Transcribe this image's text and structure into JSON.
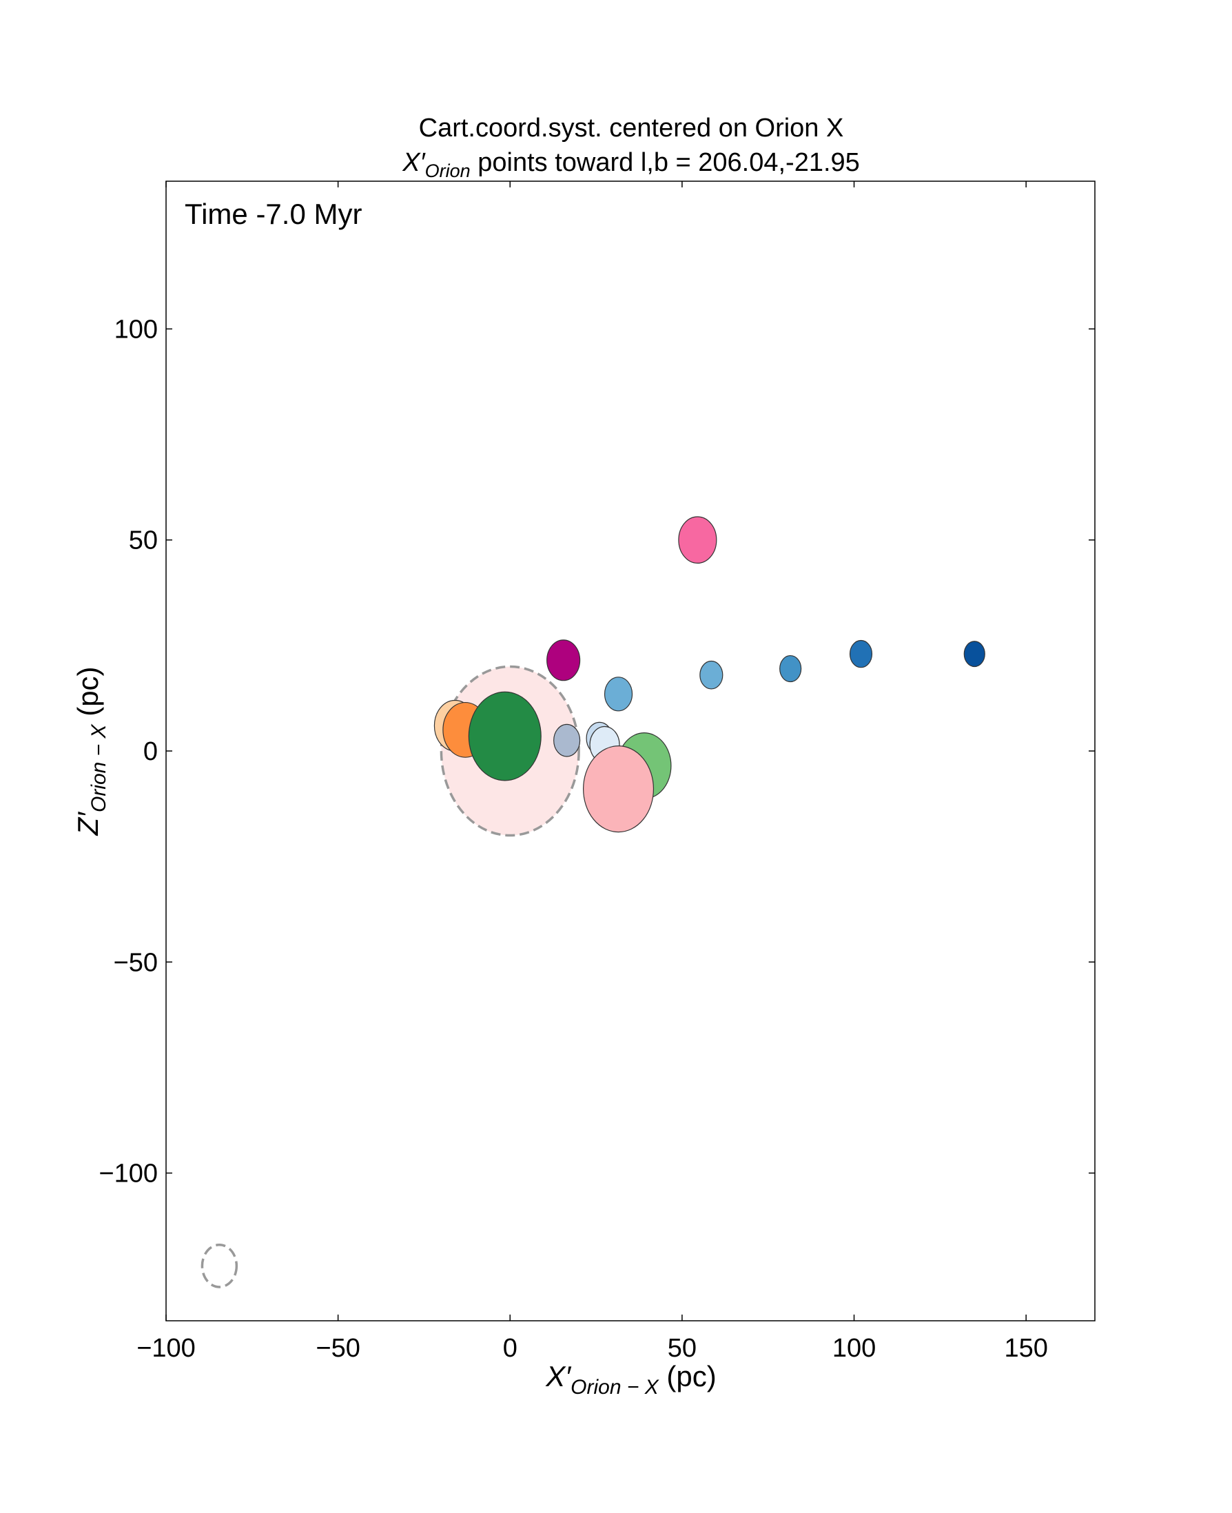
{
  "chart_data": {
    "type": "scatter",
    "title_line1": "Cart.coord.syst. centered on Orion X",
    "title_line2": {
      "symbol": "X′",
      "subscript": "Orion",
      "rest": " points toward l,b = 206.04,-21.95"
    },
    "xlabel": {
      "symbol": "X′",
      "subscript": "Orion − X",
      "unit": " (pc)"
    },
    "ylabel": {
      "symbol": "Z′",
      "subscript": "Orion − X",
      "unit": " (pc)"
    },
    "annotation": "Time  -7.0 Myr",
    "xlim": [
      -100,
      170
    ],
    "ylim": [
      -135,
      135
    ],
    "xticks": [
      -100,
      -50,
      0,
      50,
      100,
      150
    ],
    "xtick_labels": [
      "−100",
      "−50",
      "0",
      "50",
      "100",
      "150"
    ],
    "yticks": [
      -100,
      -50,
      0,
      50,
      100
    ],
    "ytick_labels": [
      "−100",
      "−50",
      "0",
      "50",
      "100"
    ],
    "grid": false,
    "points": [
      {
        "x": 0,
        "y": 0,
        "r": 20,
        "color": "#fde6e6",
        "dashed": true
      },
      {
        "x": -16,
        "y": 6,
        "r": 6,
        "color": "#fdd0a2"
      },
      {
        "x": -13,
        "y": 5,
        "r": 6.5,
        "color": "#fd8d3c"
      },
      {
        "x": -1.5,
        "y": 3.5,
        "r": 10.5,
        "color": "#238b45"
      },
      {
        "x": 16.5,
        "y": 2.5,
        "r": 3.8,
        "color": "#aab9cf"
      },
      {
        "x": 26,
        "y": 3,
        "r": 3.8,
        "color": "#c6dbef"
      },
      {
        "x": 27.5,
        "y": 1.5,
        "r": 4.3,
        "color": "#deebf7"
      },
      {
        "x": 39,
        "y": -3.5,
        "r": 7.8,
        "color": "#74c476"
      },
      {
        "x": 31.5,
        "y": -9,
        "r": 10.2,
        "color": "#fbb4b9"
      },
      {
        "x": 31.5,
        "y": 13.5,
        "r": 4,
        "color": "#6baed6"
      },
      {
        "x": 15.5,
        "y": 21.5,
        "r": 4.8,
        "color": "#ae017e"
      },
      {
        "x": 54.5,
        "y": 50,
        "r": 5.5,
        "color": "#f768a1"
      },
      {
        "x": 58.5,
        "y": 18,
        "r": 3.3,
        "color": "#6baed6"
      },
      {
        "x": 81.5,
        "y": 19.5,
        "r": 3.1,
        "color": "#4292c6"
      },
      {
        "x": 102,
        "y": 23,
        "r": 3.2,
        "color": "#2171b5"
      },
      {
        "x": 135,
        "y": 23,
        "r": 3,
        "color": "#08519c"
      },
      {
        "x": -84.5,
        "y": -122,
        "r": 5,
        "color": "none",
        "dashed": true
      }
    ]
  }
}
